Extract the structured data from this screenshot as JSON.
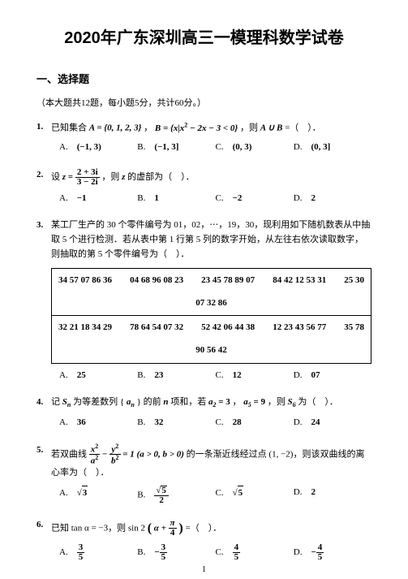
{
  "title": "2020年广东深圳高三一模理科数学试卷",
  "section": "一、选择题",
  "instructions": "（本大题共12题，每小题5分，共计60分。）",
  "q1": {
    "num": "1.",
    "text_prefix": "已知集合 ",
    "setA": "A = {0, 1, 2, 3}",
    "comma1": "，",
    "setB_pre": "B = {x|x",
    "setB_sup": "2",
    "setB_mid": " − 2x − 3 < 0}",
    "comma2": "，则 ",
    "union": "A ∪ B",
    "tail": " =（　）．",
    "A": "(−1, 3)",
    "B": "(−1, 3]",
    "C": "(0, 3)",
    "D": "(0, 3]"
  },
  "q2": {
    "num": "2.",
    "pre": "设 ",
    "z": "z",
    "eq": " = ",
    "frac_num": "2 + 3i",
    "frac_den": "3 − 2i",
    "mid": "，则 ",
    "z2": "z",
    "tail": " 的虚部为（　）．",
    "A": "−1",
    "B": "1",
    "C": "−2",
    "D": "2"
  },
  "q3": {
    "num": "3.",
    "text": "某工厂生产的 30 个零件编号为 01，02，⋯，19，30，现利用如下随机数表从中抽取 5 个进行检测．若从表中第 1 行第 5 列的数字开始，从左往右依次读取数字，则抽取的第 5 个零件编号为（　）．",
    "row1": [
      "34 57 07 86 36",
      "04 68 96 08 23",
      "23 45 78 89 07",
      "84 42 12 53 31",
      "25 30"
    ],
    "row1b": "07 32 86",
    "row2": [
      "32 21 18 34 29",
      "78 64 54 07 32",
      "52 42 06 44 38",
      "12 23 43 56 77",
      "35 78"
    ],
    "row2b": "90 56 42",
    "A": "25",
    "B": "23",
    "C": "12",
    "D": "07"
  },
  "q4": {
    "num": "4.",
    "pre": "记 ",
    "Sn": "S",
    "SnSub": "n",
    "mid1": " 为等差数列 {",
    "an": "a",
    "anSub": "n",
    "mid2": "} 的前 ",
    "n": "n",
    "mid3": " 项和，若 ",
    "a2": "a",
    "a2Sub": "2",
    "a2Eq": " = 3",
    "comma": "，",
    "a5": "a",
    "a5Sub": "5",
    "a5Eq": " = 9",
    "mid4": "，则 ",
    "S6": "S",
    "S6Sub": "6",
    "tail": " 为（　）．",
    "A": "36",
    "B": "32",
    "C": "28",
    "D": "24"
  },
  "q5": {
    "num": "5.",
    "pre": "若双曲线 ",
    "fr1n": "x",
    "fr1nSup": "2",
    "fr1d": "a",
    "fr1dSup": "2",
    "minus": " − ",
    "fr2n": "y",
    "fr2nSup": "2",
    "fr2d": "b",
    "fr2dSup": "2",
    "eq": " = 1 (a > 0, b > 0)",
    "mid": " 的一条渐近线经过点 (1, −2)，则该双曲线的离心率为（　）．",
    "A_rad": "3",
    "B_num_rad": "5",
    "B_den": "2",
    "C_rad": "5",
    "D": "2"
  },
  "q6": {
    "num": "6.",
    "pre": "已知 tan α = −3，则 sin 2",
    "lp": "(",
    "alpha": "α + ",
    "pi_num": "π",
    "pi_den": "4",
    "rp": ")",
    "tail": " =（　）．",
    "A_num": "3",
    "A_den": "5",
    "B_pre": "−",
    "B_num": "3",
    "B_den": "5",
    "C_num": "4",
    "C_den": "5",
    "D_pre": "−",
    "D_num": "4",
    "D_den": "5"
  },
  "pageNum": "1"
}
